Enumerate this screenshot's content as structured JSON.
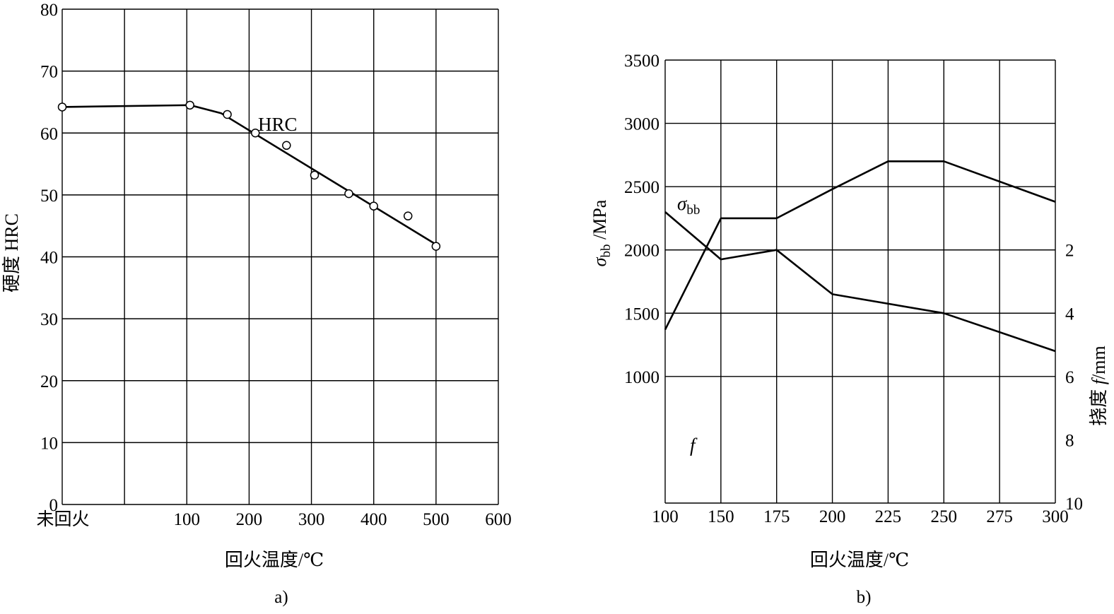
{
  "chart_data": [
    {
      "type": "line",
      "caption": "a)",
      "xlabel": "回火温度/℃",
      "ylabel": "硬度 HRC",
      "ylim": [
        0,
        80
      ],
      "xlim": [
        -100,
        600
      ],
      "grid": true,
      "x_ticks": [
        "未回火",
        "100",
        "200",
        "300",
        "400",
        "500",
        "600"
      ],
      "y_ticks": [
        "0",
        "10",
        "20",
        "30",
        "40",
        "50",
        "60",
        "70",
        "80"
      ],
      "series": [
        {
          "name": "HRC",
          "line": [
            {
              "x": -100,
              "y": 64.2
            },
            {
              "x": 105,
              "y": 64.5
            },
            {
              "x": 155,
              "y": 63.2
            },
            {
              "x": 500,
              "y": 42
            }
          ],
          "points": [
            {
              "x": -100,
              "y": 64.2
            },
            {
              "x": 105,
              "y": 64.5
            },
            {
              "x": 165,
              "y": 63.0
            },
            {
              "x": 210,
              "y": 60.0
            },
            {
              "x": 260,
              "y": 58.0
            },
            {
              "x": 305,
              "y": 53.2
            },
            {
              "x": 360,
              "y": 50.2
            },
            {
              "x": 400,
              "y": 48.2
            },
            {
              "x": 455,
              "y": 46.6
            },
            {
              "x": 500,
              "y": 41.7
            }
          ]
        }
      ]
    },
    {
      "type": "line",
      "caption": "b)",
      "xlabel": "回火温度/℃",
      "ylabel_left": "σbb/MPa",
      "ylabel_right": "挠度 f/mm",
      "xlim": [
        100,
        300
      ],
      "ylim_left": [
        0,
        3500
      ],
      "grid": true,
      "x_ticks": [
        "100",
        "150",
        "175",
        "200",
        "225",
        "250",
        "275",
        "300"
      ],
      "y_ticks_left": [
        "1000",
        "1500",
        "2000",
        "2500",
        "3000",
        "3500"
      ],
      "y_ticks_right": [
        "2",
        "4",
        "6",
        "8",
        "10"
      ],
      "series": [
        {
          "name": "σbb",
          "axis": "left",
          "x": [
            100,
            150,
            175,
            200,
            225,
            250,
            300
          ],
          "y": [
            1370,
            2250,
            2250,
            2480,
            2700,
            2700,
            2380
          ]
        },
        {
          "name": "f",
          "axis": "right",
          "x": [
            100,
            150,
            175,
            200,
            250,
            300
          ],
          "y": [
            0.8,
            2.3,
            2.0,
            3.4,
            4.0,
            5.2
          ]
        }
      ]
    }
  ]
}
